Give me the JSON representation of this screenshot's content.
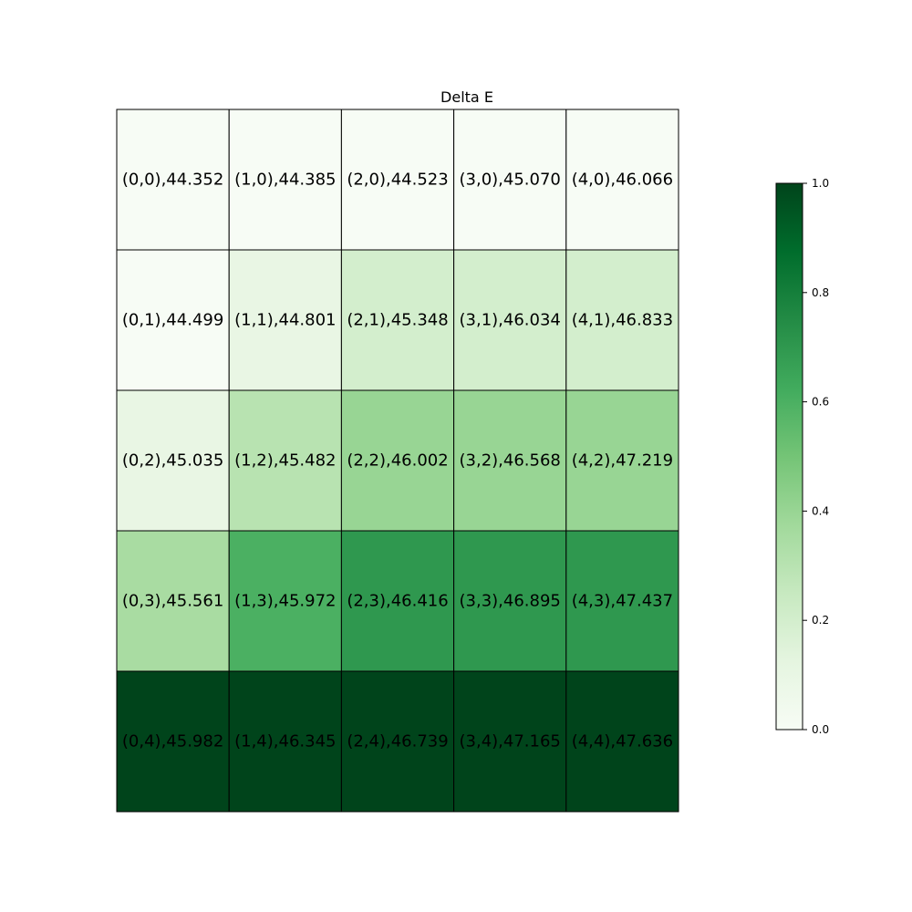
{
  "chart_data": {
    "type": "heatmap",
    "title": "Delta E",
    "rows": 5,
    "cols": 5,
    "cells": [
      [
        {
          "label": "(0,0),44.352",
          "level": 0.0
        },
        {
          "label": "(1,0),44.385",
          "level": 0.0
        },
        {
          "label": "(2,0),44.523",
          "level": 0.0
        },
        {
          "label": "(3,0),45.070",
          "level": 0.0
        },
        {
          "label": "(4,0),46.066",
          "level": 0.0
        }
      ],
      [
        {
          "label": "(0,1),44.499",
          "level": 0.0
        },
        {
          "label": "(1,1),44.801",
          "level": 0.1
        },
        {
          "label": "(2,1),45.348",
          "level": 0.2
        },
        {
          "label": "(3,1),46.034",
          "level": 0.2
        },
        {
          "label": "(4,1),46.833",
          "level": 0.2
        }
      ],
      [
        {
          "label": "(0,2),45.035",
          "level": 0.1
        },
        {
          "label": "(1,2),45.482",
          "level": 0.3
        },
        {
          "label": "(2,2),46.002",
          "level": 0.4
        },
        {
          "label": "(3,2),46.568",
          "level": 0.4
        },
        {
          "label": "(4,2),47.219",
          "level": 0.4
        }
      ],
      [
        {
          "label": "(0,3),45.561",
          "level": 0.35
        },
        {
          "label": "(1,3),45.972",
          "level": 0.6
        },
        {
          "label": "(2,3),46.416",
          "level": 0.7
        },
        {
          "label": "(3,3),46.895",
          "level": 0.7
        },
        {
          "label": "(4,3),47.437",
          "level": 0.7
        }
      ],
      [
        {
          "label": "(0,4),45.982",
          "level": 1.0
        },
        {
          "label": "(1,4),46.345",
          "level": 1.0
        },
        {
          "label": "(2,4),46.739",
          "level": 1.0
        },
        {
          "label": "(3,4),47.165",
          "level": 1.0
        },
        {
          "label": "(4,4),47.636",
          "level": 1.0
        }
      ]
    ],
    "colorbar": {
      "range": [
        0.0,
        1.0
      ],
      "ticks": [
        "0.0",
        "0.2",
        "0.4",
        "0.6",
        "0.8",
        "1.0"
      ],
      "colormap": "Greens"
    },
    "grid": true,
    "cell_border_color": "#000000"
  }
}
